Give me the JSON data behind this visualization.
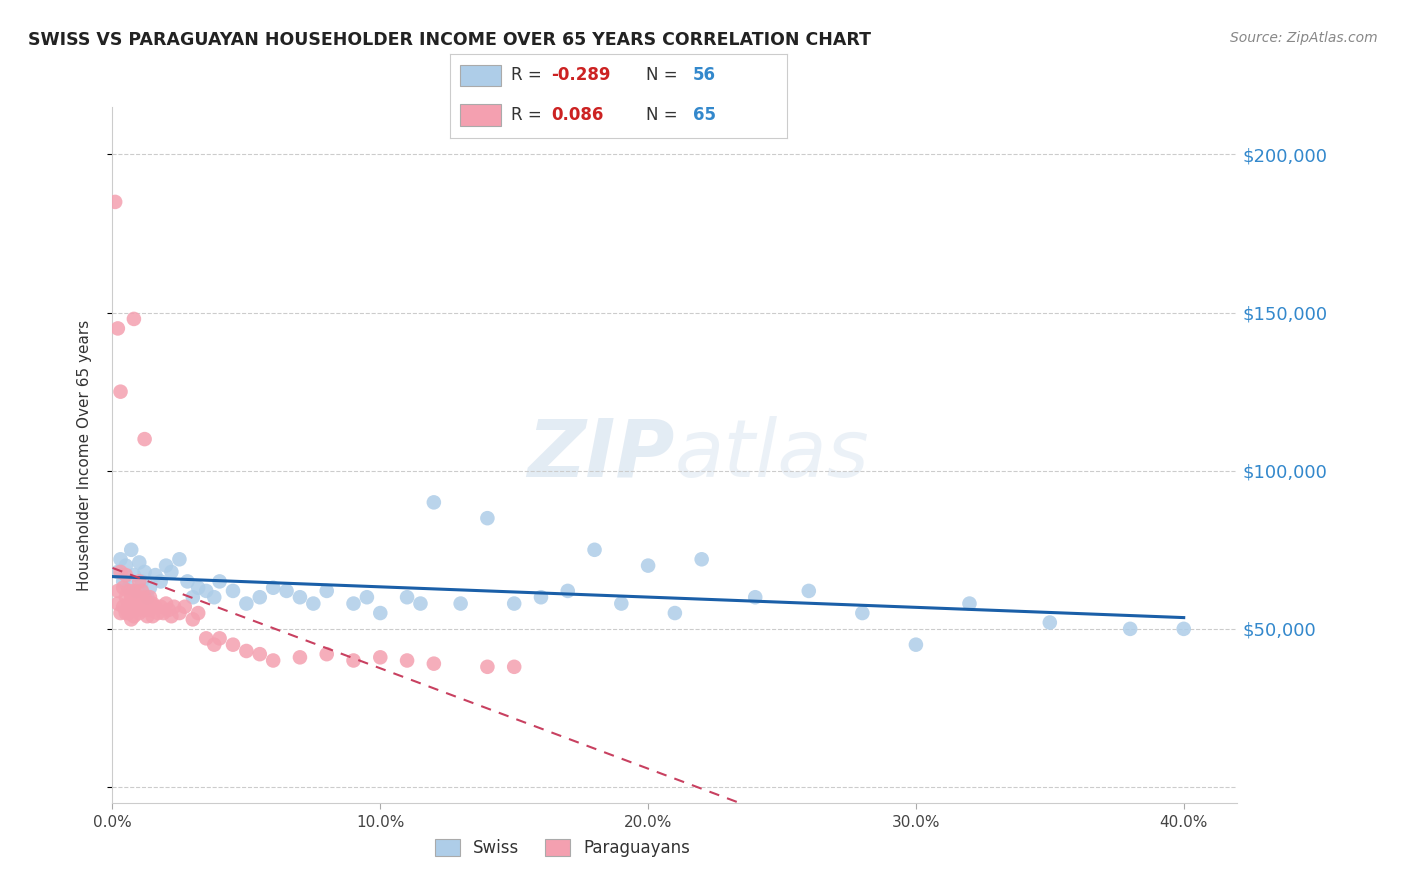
{
  "title": "SWISS VS PARAGUAYAN HOUSEHOLDER INCOME OVER 65 YEARS CORRELATION CHART",
  "source": "Source: ZipAtlas.com",
  "ylabel": "Householder Income Over 65 years",
  "y_ticks": [
    0,
    50000,
    100000,
    150000,
    200000
  ],
  "y_tick_labels": [
    "",
    "$50,000",
    "$100,000",
    "$150,000",
    "$200,000"
  ],
  "xlim": [
    0.0,
    0.42
  ],
  "ylim": [
    -5000,
    215000
  ],
  "swiss_R": -0.289,
  "swiss_N": 56,
  "paraguayan_R": 0.086,
  "paraguayan_N": 65,
  "swiss_color": "#aecde8",
  "paraguayan_color": "#f4a0b0",
  "swiss_line_color": "#1a5fa8",
  "paraguayan_line_color": "#c84060",
  "watermark_color": "#d8e4f0",
  "swiss_x": [
    0.002,
    0.003,
    0.004,
    0.005,
    0.006,
    0.007,
    0.008,
    0.009,
    0.01,
    0.011,
    0.012,
    0.013,
    0.014,
    0.016,
    0.018,
    0.02,
    0.022,
    0.025,
    0.028,
    0.03,
    0.032,
    0.035,
    0.038,
    0.04,
    0.045,
    0.05,
    0.055,
    0.06,
    0.065,
    0.07,
    0.075,
    0.08,
    0.09,
    0.095,
    0.1,
    0.11,
    0.115,
    0.12,
    0.13,
    0.14,
    0.15,
    0.16,
    0.17,
    0.18,
    0.19,
    0.2,
    0.21,
    0.22,
    0.24,
    0.26,
    0.28,
    0.3,
    0.32,
    0.35,
    0.38,
    0.4
  ],
  "swiss_y": [
    68000,
    72000,
    65000,
    70000,
    63000,
    75000,
    67000,
    62000,
    71000,
    65000,
    68000,
    60000,
    63000,
    67000,
    65000,
    70000,
    68000,
    72000,
    65000,
    60000,
    63000,
    62000,
    60000,
    65000,
    62000,
    58000,
    60000,
    63000,
    62000,
    60000,
    58000,
    62000,
    58000,
    60000,
    55000,
    60000,
    58000,
    90000,
    58000,
    85000,
    58000,
    60000,
    62000,
    75000,
    58000,
    70000,
    55000,
    72000,
    60000,
    62000,
    55000,
    45000,
    58000,
    52000,
    50000,
    50000
  ],
  "paraguayan_x": [
    0.001,
    0.002,
    0.002,
    0.003,
    0.003,
    0.004,
    0.004,
    0.005,
    0.005,
    0.005,
    0.006,
    0.006,
    0.006,
    0.007,
    0.007,
    0.007,
    0.008,
    0.008,
    0.008,
    0.009,
    0.009,
    0.01,
    0.01,
    0.01,
    0.011,
    0.011,
    0.012,
    0.012,
    0.013,
    0.013,
    0.014,
    0.014,
    0.015,
    0.015,
    0.016,
    0.017,
    0.018,
    0.019,
    0.02,
    0.021,
    0.022,
    0.023,
    0.025,
    0.027,
    0.03,
    0.032,
    0.035,
    0.038,
    0.04,
    0.045,
    0.05,
    0.055,
    0.06,
    0.07,
    0.08,
    0.09,
    0.1,
    0.11,
    0.12,
    0.14,
    0.002,
    0.003,
    0.008,
    0.012,
    0.15
  ],
  "paraguayan_y": [
    185000,
    62000,
    58000,
    68000,
    55000,
    63000,
    57000,
    67000,
    60000,
    55000,
    62000,
    58000,
    55000,
    60000,
    57000,
    53000,
    62000,
    58000,
    54000,
    60000,
    56000,
    65000,
    60000,
    55000,
    62000,
    58000,
    60000,
    56000,
    58000,
    54000,
    60000,
    56000,
    58000,
    54000,
    57000,
    55000,
    57000,
    55000,
    58000,
    56000,
    54000,
    57000,
    55000,
    57000,
    53000,
    55000,
    47000,
    45000,
    47000,
    45000,
    43000,
    42000,
    40000,
    41000,
    42000,
    40000,
    41000,
    40000,
    39000,
    38000,
    145000,
    125000,
    148000,
    110000,
    38000
  ]
}
